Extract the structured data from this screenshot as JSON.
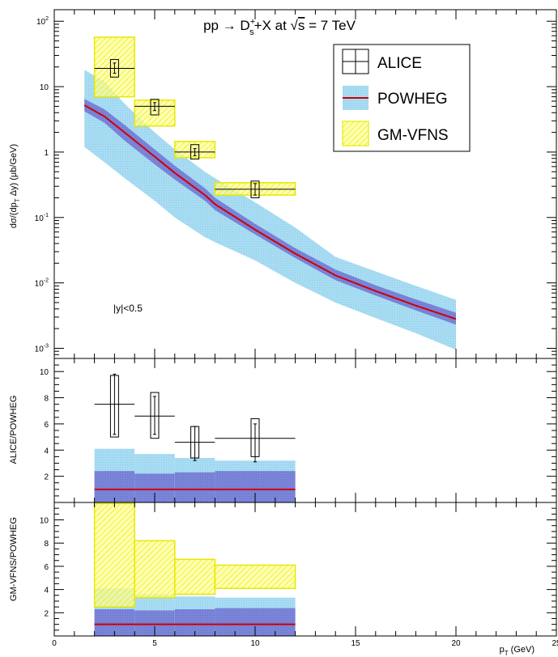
{
  "chart_data": {
    "type": "area",
    "title": "pp → D_s^+ + X at √s = 7 TeV",
    "title_parts": {
      "pre": "pp → D",
      "sup": "+",
      "sub": "s",
      "post1": "+X at ",
      "sqrt": "√",
      "s": "s",
      "post2": " = 7 TeV"
    },
    "xlabel": "p_T (GeV)",
    "xlabel_parts": {
      "main": "p",
      "sub": "T",
      "rest": " (GeV)"
    },
    "xlim": [
      0,
      25
    ],
    "x_ticks": [
      "0",
      "5",
      "10",
      "15",
      "20",
      "25"
    ],
    "annotation": "|y|<0.5",
    "colors": {
      "alice": "#000000",
      "powheg_line": "#cc0000",
      "powheg_outer": "#a8dcf2",
      "powheg_inner": "#7a84d8",
      "gmvfns_fill": "#ffff99",
      "gmvfns_edge": "#e8e800"
    },
    "legend": {
      "placement": "top-right",
      "entries": [
        {
          "label": "ALICE",
          "style": "marker-errorbar"
        },
        {
          "label": "POWHEG",
          "style": "line-band"
        },
        {
          "label": "GM-VFNS",
          "style": "hatched-box"
        }
      ]
    },
    "panels": [
      {
        "id": "spectrum",
        "ylabel": "dσ/(dp_T Δy) (μb/GeV)",
        "ylabel_parts": {
          "pre": "dσ/(dp",
          "sub": "T",
          "post": " Δy) (μb/GeV)"
        },
        "yscale": "log",
        "ylim": [
          0.0007,
          150
        ],
        "y_ticks": [
          {
            "v": 0.001,
            "b": "10",
            "e": "-3"
          },
          {
            "v": 0.01,
            "b": "10",
            "e": "-2"
          },
          {
            "v": 0.1,
            "b": "10",
            "e": "-1"
          },
          {
            "v": 1,
            "b": "1",
            "e": ""
          },
          {
            "v": 10,
            "b": "10",
            "e": ""
          },
          {
            "v": 100,
            "b": "10",
            "e": "2"
          }
        ],
        "series": [
          {
            "name": "POWHEG",
            "x": [
              1.5,
              2.5,
              3.5,
              5,
              6,
              7.5,
              8,
              10,
              12,
              14,
              16,
              18,
              20
            ],
            "central": [
              5.2,
              3.5,
              2.0,
              0.85,
              0.48,
              0.22,
              0.16,
              0.065,
              0.028,
              0.013,
              0.0075,
              0.0045,
              0.0028
            ],
            "inner_low": [
              4.2,
              2.8,
              1.5,
              0.65,
              0.38,
              0.18,
              0.13,
              0.055,
              0.024,
              0.011,
              0.0064,
              0.0038,
              0.0023
            ],
            "inner_high": [
              6.5,
              4.5,
              2.6,
              1.1,
              0.62,
              0.28,
              0.2,
              0.08,
              0.034,
              0.016,
              0.0092,
              0.0056,
              0.0035
            ],
            "outer_low": [
              1.2,
              0.7,
              0.4,
              0.18,
              0.1,
              0.05,
              0.042,
              0.022,
              0.01,
              0.005,
              0.0029,
              0.0017,
              0.00095
            ],
            "outer_high": [
              18,
              12,
              5.5,
              2.0,
              1.1,
              0.5,
              0.4,
              0.17,
              0.07,
              0.025,
              0.015,
              0.009,
              0.0055
            ]
          },
          {
            "name": "ALICE",
            "points": [
              {
                "x": 3,
                "xl": 2,
                "xh": 4,
                "y": 19,
                "stat": [
                  16,
                  23
                ],
                "sys": [
                  14,
                  26
                ]
              },
              {
                "x": 5,
                "xl": 4,
                "xh": 6,
                "y": 5.0,
                "stat": [
                  4.3,
                  5.7
                ],
                "sys": [
                  3.7,
                  6.4
                ]
              },
              {
                "x": 7,
                "xl": 6,
                "xh": 8,
                "y": 1.0,
                "stat": [
                  0.88,
                  1.13
                ],
                "sys": [
                  0.78,
                  1.3
                ]
              },
              {
                "x": 10,
                "xl": 8,
                "xh": 12,
                "y": 0.27,
                "stat": [
                  0.22,
                  0.33
                ],
                "sys": [
                  0.2,
                  0.36
                ]
              }
            ]
          },
          {
            "name": "GM-VFNS",
            "bins": [
              {
                "x0": 2,
                "x1": 4,
                "low": 7,
                "high": 57
              },
              {
                "x0": 4,
                "x1": 6,
                "low": 2.5,
                "high": 6.2
              },
              {
                "x0": 6,
                "x1": 8,
                "low": 0.82,
                "high": 1.45
              },
              {
                "x0": 8,
                "x1": 12,
                "low": 0.22,
                "high": 0.34
              }
            ]
          }
        ]
      },
      {
        "id": "alice-ratio",
        "ylabel": "ALICE/POWHEG",
        "yscale": "linear",
        "ylim": [
          0,
          11
        ],
        "y_ticks": [
          2,
          4,
          6,
          8,
          10
        ],
        "series": [
          {
            "name": "POWHEG",
            "bins": [
              {
                "x0": 2,
                "x1": 4,
                "outer": [
                  0,
                  4.1
                ],
                "inner": [
                  0,
                  2.4
                ]
              },
              {
                "x0": 4,
                "x1": 6,
                "outer": [
                  0,
                  3.7
                ],
                "inner": [
                  0,
                  2.2
                ]
              },
              {
                "x0": 6,
                "x1": 8,
                "outer": [
                  0,
                  3.4
                ],
                "inner": [
                  0,
                  2.3
                ]
              },
              {
                "x0": 8,
                "x1": 12,
                "outer": [
                  0,
                  3.2
                ],
                "inner": [
                  0,
                  2.4
                ]
              }
            ],
            "central": 1.0
          },
          {
            "name": "ALICE",
            "points": [
              {
                "x": 3,
                "xl": 2,
                "xh": 4,
                "y": 7.5,
                "stat": [
                  5.2,
                  9.8
                ],
                "sys": [
                  5.0,
                  9.7
                ]
              },
              {
                "x": 5,
                "xl": 4,
                "xh": 6,
                "y": 6.6,
                "stat": [
                  5.2,
                  8.1
                ],
                "sys": [
                  4.9,
                  8.4
                ]
              },
              {
                "x": 7,
                "xl": 6,
                "xh": 8,
                "y": 4.6,
                "stat": [
                  3.2,
                  5.8
                ],
                "sys": [
                  3.4,
                  5.8
                ]
              },
              {
                "x": 10,
                "xl": 8,
                "xh": 12,
                "y": 4.9,
                "stat": [
                  3.1,
                  6.0
                ],
                "sys": [
                  3.5,
                  6.4
                ]
              }
            ]
          }
        ]
      },
      {
        "id": "gmvfns-ratio",
        "ylabel": "GM-VFNS/POWHEG",
        "yscale": "linear",
        "ylim": [
          0,
          11.5
        ],
        "y_ticks": [
          2,
          4,
          6,
          8,
          10
        ],
        "series": [
          {
            "name": "POWHEG",
            "bins": [
              {
                "x0": 2,
                "x1": 4,
                "outer": [
                  0,
                  4.1
                ],
                "inner": [
                  0,
                  2.3
                ]
              },
              {
                "x0": 4,
                "x1": 6,
                "outer": [
                  0,
                  3.6
                ],
                "inner": [
                  0,
                  2.2
                ]
              },
              {
                "x0": 6,
                "x1": 8,
                "outer": [
                  0,
                  3.4
                ],
                "inner": [
                  0,
                  2.3
                ]
              },
              {
                "x0": 8,
                "x1": 12,
                "outer": [
                  0,
                  3.3
                ],
                "inner": [
                  0,
                  2.4
                ]
              }
            ],
            "central": 1.0
          },
          {
            "name": "GM-VFNS",
            "bins": [
              {
                "x0": 2,
                "x1": 4,
                "low": 2.5,
                "high": 11.4
              },
              {
                "x0": 4,
                "x1": 6,
                "low": 3.3,
                "high": 8.2
              },
              {
                "x0": 6,
                "x1": 8,
                "low": 3.6,
                "high": 6.6
              },
              {
                "x0": 8,
                "x1": 12,
                "low": 4.1,
                "high": 6.1
              }
            ]
          }
        ]
      }
    ]
  }
}
